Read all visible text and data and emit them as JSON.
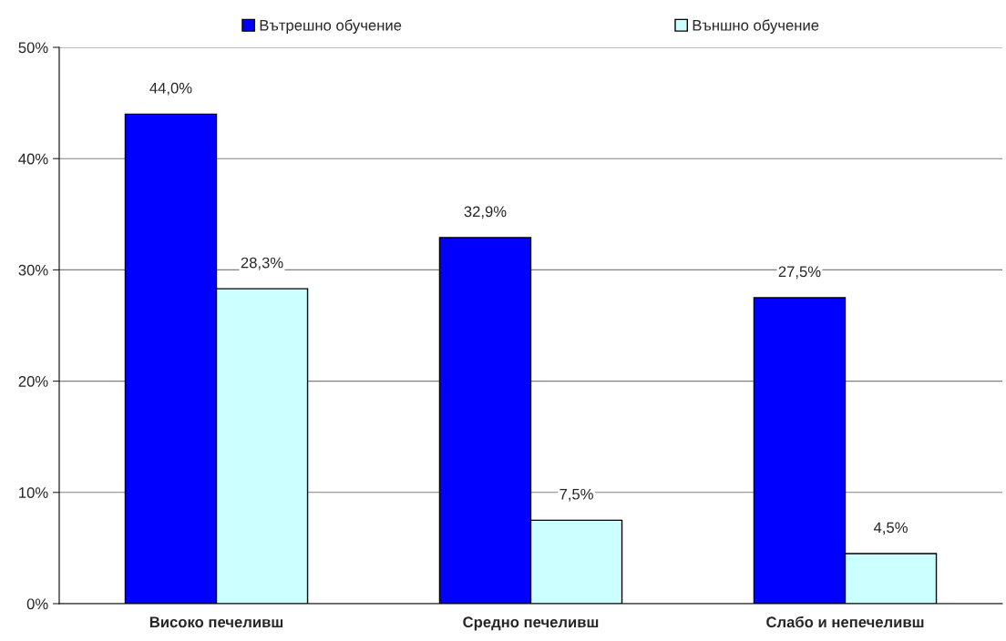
{
  "chart_data": {
    "type": "bar",
    "categories": [
      "Високо печеливш",
      "Средно печеливш",
      "Слабо и непечеливш"
    ],
    "series": [
      {
        "name": "Вътрешно обучение",
        "color": "#0000ff",
        "values": [
          44.0,
          32.9,
          27.5
        ],
        "value_labels": [
          "44,0%",
          "32,9%",
          "27,5%"
        ]
      },
      {
        "name": "Външно обучение",
        "color": "#ccffff",
        "values": [
          28.3,
          7.5,
          4.5
        ],
        "value_labels": [
          "28,3%",
          "7,5%",
          "4,5%"
        ]
      }
    ],
    "ylim": [
      0,
      50
    ],
    "yticks": [
      {
        "value": 0,
        "label": "0%"
      },
      {
        "value": 10,
        "label": "10%"
      },
      {
        "value": 20,
        "label": "20%"
      },
      {
        "value": 30,
        "label": "30%"
      },
      {
        "value": 40,
        "label": "40%"
      },
      {
        "value": 50,
        "label": "50%"
      }
    ],
    "grid": "y",
    "legend": "top"
  }
}
